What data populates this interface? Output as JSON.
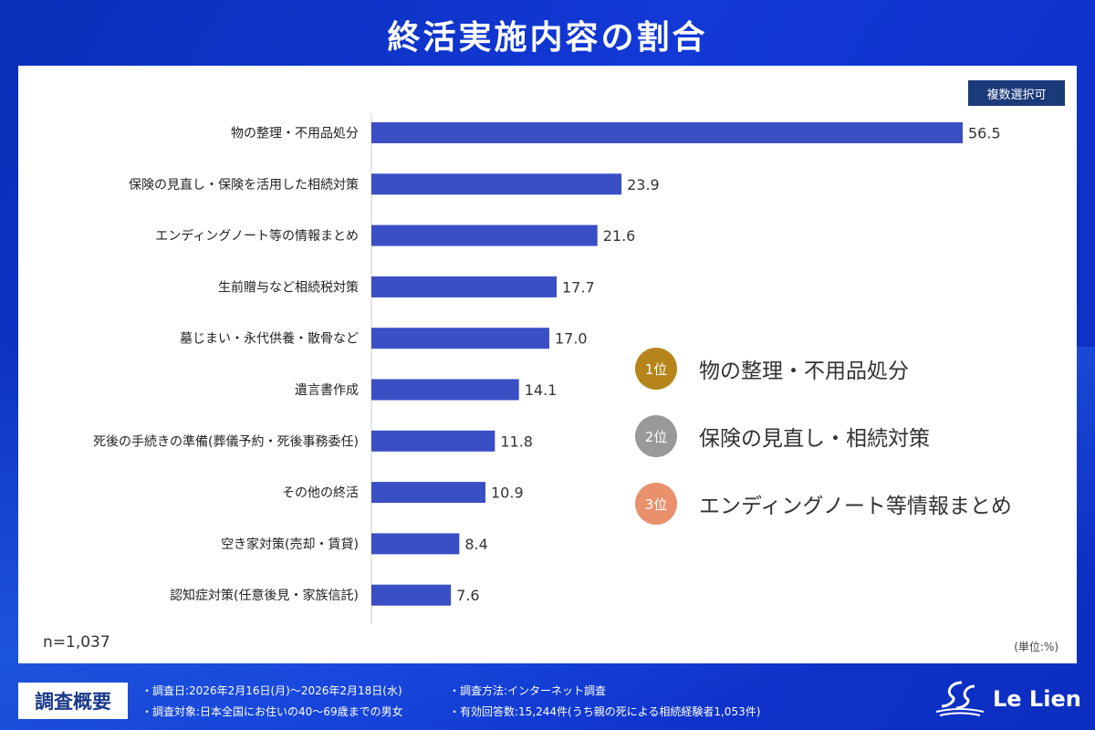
{
  "title": "終活実施内容の割合",
  "badge": "複数選択可",
  "n_label": "n=1,037",
  "unit_label": "(単位:%)",
  "chart_data": {
    "type": "bar",
    "orientation": "horizontal",
    "categories": [
      "物の整理・不用品処分",
      "保険の見直し・保険を活用した相続対策",
      "エンディングノート等の情報まとめ",
      "生前贈与など相続税対策",
      "墓じまい・永代供養・散骨など",
      "遺言書作成",
      "死後の手続きの準備(葬儀予約・死後事務委任)",
      "その他の終活",
      "空き家対策(売却・賃貸)",
      "認知症対策(任意後見・家族信託)"
    ],
    "values": [
      56.5,
      23.9,
      21.6,
      17.7,
      17.0,
      14.1,
      11.8,
      10.9,
      8.4,
      7.6
    ],
    "value_labels": [
      "56.5",
      "23.9",
      "21.6",
      "17.7",
      "17.0",
      "14.1",
      "11.8",
      "10.9",
      "8.4",
      "7.6"
    ],
    "bar_color": "#3a4fc4",
    "xlim": [
      0,
      56.5
    ]
  },
  "ranking": [
    {
      "rank": "1位",
      "label": "物の整理・不用品処分",
      "color": "#b5851c"
    },
    {
      "rank": "2位",
      "label": "保険の見直し・相続対策",
      "color": "#999999"
    },
    {
      "rank": "3位",
      "label": "エンディングノート等情報まとめ",
      "color": "#e8916c"
    }
  ],
  "footer": {
    "heading": "調査概要",
    "date": "・調査日:2026年2月16日(月)〜2026年2月18日(水)",
    "target": "・調査対象:日本全国にお住いの40〜69歳までの男女",
    "method": "・調査方法:インターネット調査",
    "responses": "・有効回答数:15,244件(うち親の死による相続経験者1,053件)",
    "logo": "Le Lien"
  }
}
